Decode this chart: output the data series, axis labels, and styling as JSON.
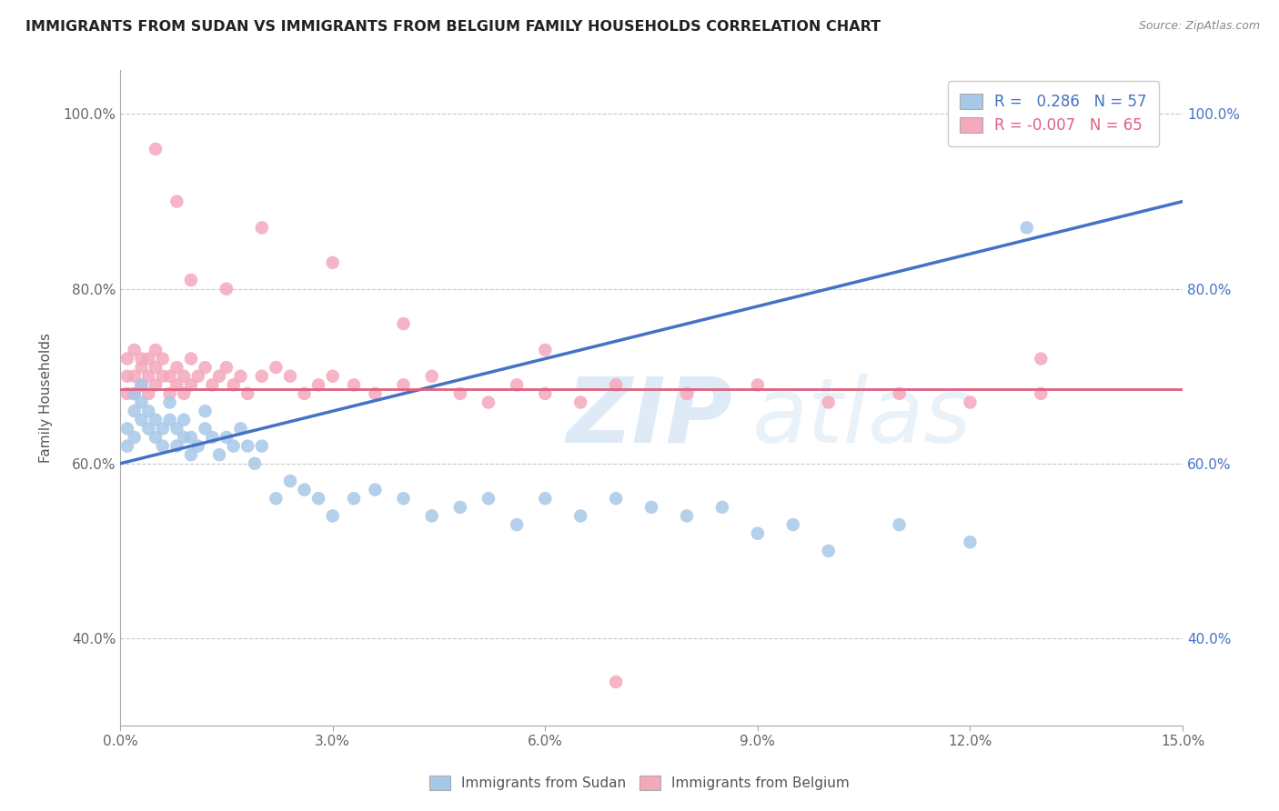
{
  "title": "IMMIGRANTS FROM SUDAN VS IMMIGRANTS FROM BELGIUM FAMILY HOUSEHOLDS CORRELATION CHART",
  "source": "Source: ZipAtlas.com",
  "ylabel": "Family Households",
  "xlim": [
    0.0,
    0.15
  ],
  "ylim": [
    0.3,
    1.05
  ],
  "xticks": [
    0.0,
    0.03,
    0.06,
    0.09,
    0.12,
    0.15
  ],
  "xtick_labels": [
    "0.0%",
    "3.0%",
    "6.0%",
    "9.0%",
    "12.0%",
    "15.0%"
  ],
  "yticks": [
    0.4,
    0.6,
    0.8,
    1.0
  ],
  "ytick_labels": [
    "40.0%",
    "60.0%",
    "80.0%",
    "100.0%"
  ],
  "legend_r_sudan": "0.286",
  "legend_n_sudan": "57",
  "legend_r_belgium": "-0.007",
  "legend_n_belgium": "65",
  "color_sudan": "#a8c8e8",
  "color_belgium": "#f4a8bc",
  "line_color_sudan": "#4472c4",
  "line_color_belgium": "#e06080",
  "sudan_x": [
    0.001,
    0.001,
    0.002,
    0.002,
    0.002,
    0.003,
    0.003,
    0.003,
    0.004,
    0.004,
    0.005,
    0.005,
    0.006,
    0.006,
    0.007,
    0.007,
    0.008,
    0.008,
    0.009,
    0.009,
    0.01,
    0.01,
    0.011,
    0.012,
    0.012,
    0.013,
    0.014,
    0.015,
    0.016,
    0.017,
    0.018,
    0.019,
    0.02,
    0.022,
    0.024,
    0.026,
    0.028,
    0.03,
    0.033,
    0.036,
    0.04,
    0.044,
    0.048,
    0.052,
    0.056,
    0.06,
    0.065,
    0.07,
    0.075,
    0.08,
    0.085,
    0.09,
    0.095,
    0.1,
    0.11,
    0.12,
    0.128
  ],
  "sudan_y": [
    0.62,
    0.64,
    0.63,
    0.66,
    0.68,
    0.65,
    0.67,
    0.69,
    0.64,
    0.66,
    0.63,
    0.65,
    0.62,
    0.64,
    0.65,
    0.67,
    0.62,
    0.64,
    0.63,
    0.65,
    0.61,
    0.63,
    0.62,
    0.64,
    0.66,
    0.63,
    0.61,
    0.63,
    0.62,
    0.64,
    0.62,
    0.6,
    0.62,
    0.56,
    0.58,
    0.57,
    0.56,
    0.54,
    0.56,
    0.57,
    0.56,
    0.54,
    0.55,
    0.56,
    0.53,
    0.56,
    0.54,
    0.56,
    0.55,
    0.54,
    0.55,
    0.52,
    0.53,
    0.5,
    0.53,
    0.51,
    0.87
  ],
  "belgium_x": [
    0.001,
    0.001,
    0.001,
    0.002,
    0.002,
    0.002,
    0.003,
    0.003,
    0.003,
    0.004,
    0.004,
    0.004,
    0.005,
    0.005,
    0.005,
    0.006,
    0.006,
    0.007,
    0.007,
    0.008,
    0.008,
    0.009,
    0.009,
    0.01,
    0.01,
    0.011,
    0.012,
    0.013,
    0.014,
    0.015,
    0.016,
    0.017,
    0.018,
    0.02,
    0.022,
    0.024,
    0.026,
    0.028,
    0.03,
    0.033,
    0.036,
    0.04,
    0.044,
    0.048,
    0.052,
    0.056,
    0.06,
    0.065,
    0.07,
    0.08,
    0.09,
    0.1,
    0.11,
    0.12,
    0.13,
    0.03,
    0.04,
    0.06,
    0.02,
    0.01,
    0.015,
    0.008,
    0.005,
    0.07,
    0.13
  ],
  "belgium_y": [
    0.68,
    0.7,
    0.72,
    0.73,
    0.7,
    0.68,
    0.72,
    0.69,
    0.71,
    0.7,
    0.72,
    0.68,
    0.69,
    0.71,
    0.73,
    0.7,
    0.72,
    0.68,
    0.7,
    0.69,
    0.71,
    0.68,
    0.7,
    0.72,
    0.69,
    0.7,
    0.71,
    0.69,
    0.7,
    0.71,
    0.69,
    0.7,
    0.68,
    0.7,
    0.71,
    0.7,
    0.68,
    0.69,
    0.7,
    0.69,
    0.68,
    0.69,
    0.7,
    0.68,
    0.67,
    0.69,
    0.68,
    0.67,
    0.69,
    0.68,
    0.69,
    0.67,
    0.68,
    0.67,
    0.68,
    0.83,
    0.76,
    0.73,
    0.87,
    0.81,
    0.8,
    0.9,
    0.96,
    0.35,
    0.72
  ]
}
